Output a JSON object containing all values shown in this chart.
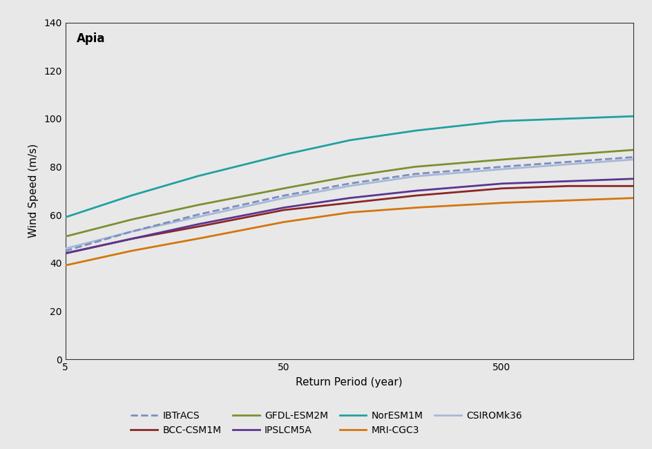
{
  "title": "Apia",
  "xlabel": "Return Period (year)",
  "ylabel": "Wind Speed (m/s)",
  "plot_bg_color": "#e8e8e8",
  "fig_bg_color": "#e8e8e8",
  "ylim": [
    0,
    140
  ],
  "yticks": [
    0,
    20,
    40,
    60,
    80,
    100,
    120,
    140
  ],
  "xlog_min": 5,
  "xlog_max": 2000,
  "xtick_positions": [
    5,
    50,
    500
  ],
  "series": [
    {
      "name": "IBTrACS",
      "color": "#7b8fc0",
      "linestyle": "dashed",
      "linewidth": 2.0,
      "zorder": 5,
      "points": [
        [
          5,
          45
        ],
        [
          10,
          53
        ],
        [
          20,
          60
        ],
        [
          50,
          68
        ],
        [
          100,
          73
        ],
        [
          200,
          77
        ],
        [
          500,
          80
        ],
        [
          1000,
          82
        ],
        [
          2000,
          84
        ]
      ]
    },
    {
      "name": "BCC-CSM1M",
      "color": "#8b2525",
      "linestyle": "solid",
      "linewidth": 2.0,
      "zorder": 4,
      "points": [
        [
          5,
          44
        ],
        [
          10,
          50
        ],
        [
          20,
          55
        ],
        [
          50,
          62
        ],
        [
          100,
          65
        ],
        [
          200,
          68
        ],
        [
          500,
          71
        ],
        [
          1000,
          72
        ],
        [
          2000,
          72
        ]
      ]
    },
    {
      "name": "GFDL-ESM2M",
      "color": "#7a9030",
      "linestyle": "solid",
      "linewidth": 2.0,
      "zorder": 4,
      "points": [
        [
          5,
          51
        ],
        [
          10,
          58
        ],
        [
          20,
          64
        ],
        [
          50,
          71
        ],
        [
          100,
          76
        ],
        [
          200,
          80
        ],
        [
          500,
          83
        ],
        [
          1000,
          85
        ],
        [
          2000,
          87
        ]
      ]
    },
    {
      "name": "IPSLCM5A",
      "color": "#5a3590",
      "linestyle": "solid",
      "linewidth": 2.0,
      "zorder": 4,
      "points": [
        [
          5,
          44
        ],
        [
          10,
          50
        ],
        [
          20,
          56
        ],
        [
          50,
          63
        ],
        [
          100,
          67
        ],
        [
          200,
          70
        ],
        [
          500,
          73
        ],
        [
          1000,
          74
        ],
        [
          2000,
          75
        ]
      ]
    },
    {
      "name": "NorESM1M",
      "color": "#20a0a0",
      "linestyle": "solid",
      "linewidth": 2.0,
      "zorder": 4,
      "points": [
        [
          5,
          59
        ],
        [
          10,
          68
        ],
        [
          20,
          76
        ],
        [
          50,
          85
        ],
        [
          100,
          91
        ],
        [
          200,
          95
        ],
        [
          500,
          99
        ],
        [
          1000,
          100
        ],
        [
          2000,
          101
        ]
      ]
    },
    {
      "name": "MRI-CGC3",
      "color": "#d4750a",
      "linestyle": "solid",
      "linewidth": 2.0,
      "zorder": 4,
      "points": [
        [
          5,
          39
        ],
        [
          10,
          45
        ],
        [
          20,
          50
        ],
        [
          50,
          57
        ],
        [
          100,
          61
        ],
        [
          200,
          63
        ],
        [
          500,
          65
        ],
        [
          1000,
          66
        ],
        [
          2000,
          67
        ]
      ]
    },
    {
      "name": "CSIROMk36",
      "color": "#a8b8d8",
      "linestyle": "solid",
      "linewidth": 2.0,
      "zorder": 3,
      "points": [
        [
          5,
          46
        ],
        [
          10,
          53
        ],
        [
          20,
          59
        ],
        [
          50,
          67
        ],
        [
          100,
          72
        ],
        [
          200,
          76
        ],
        [
          500,
          79
        ],
        [
          1000,
          81
        ],
        [
          2000,
          83
        ]
      ]
    }
  ],
  "legend_row1": [
    {
      "name": "IBTrACS",
      "color": "#7b8fc0",
      "linestyle": "dashed"
    },
    {
      "name": "BCC-CSM1M",
      "color": "#8b2525",
      "linestyle": "solid"
    },
    {
      "name": "GFDL-ESM2M",
      "color": "#7a9030",
      "linestyle": "solid"
    },
    {
      "name": "IPSLCM5A",
      "color": "#5a3590",
      "linestyle": "solid"
    }
  ],
  "legend_row2": [
    {
      "name": "NorESM1M",
      "color": "#20a0a0",
      "linestyle": "solid"
    },
    {
      "name": "MRI-CGC3",
      "color": "#d4750a",
      "linestyle": "solid"
    },
    {
      "name": "CSIROMk36",
      "color": "#a8b8d8",
      "linestyle": "solid"
    }
  ]
}
